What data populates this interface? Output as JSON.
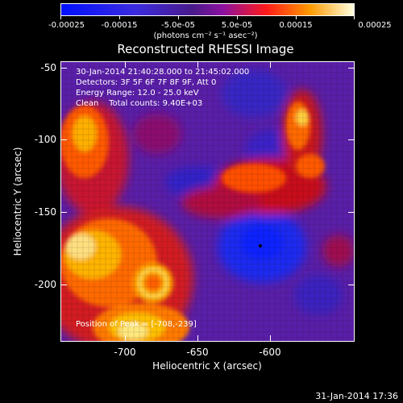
{
  "colorbar": {
    "tick_labels": [
      "-0.00025",
      "-0.00015",
      "-5.0e-05",
      "5.0e-05",
      "0.00015",
      "0.00025"
    ],
    "units_label": "(photons cm⁻² s⁻¹ asec⁻²)"
  },
  "title": "Reconstructed RHESSI Image",
  "info": {
    "line1": "30-Jan-2014 21:40:28.000 to 21:45:02.000",
    "line2": "Detectors: 3F 5F 6F 7F 8F 9F, Att 0",
    "line3": "Energy Range: 12.0 - 25.0 keV",
    "line4": "Clean    Total counts: 9.40E+03"
  },
  "peak_text": "Position of Peak = [-708,-239]",
  "axes": {
    "xlabel": "Heliocentric X (arcsec)",
    "ylabel": "Heliocentric Y (arcsec)",
    "xticks": [
      "-700",
      "-650",
      "-600"
    ],
    "yticks": [
      "-50",
      "-100",
      "-150",
      "-200"
    ]
  },
  "timestamp": "31-Jan-2014 17:36",
  "colors": {
    "map_low": "#0000ff",
    "map_mid": "#6a1fb5",
    "map_high": "#ff3300",
    "map_top": "#ffff99"
  }
}
